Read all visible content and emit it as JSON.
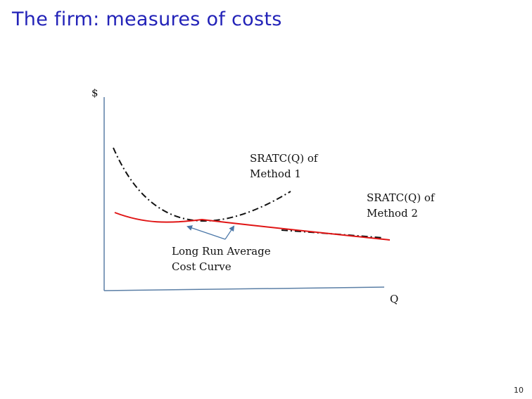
{
  "slide": {
    "title": "The firm: measures of costs",
    "page_number": "10"
  },
  "diagram": {
    "y_axis_label": "$",
    "x_axis_label": "Q",
    "sratc1_line1": "SRATC(Q) of",
    "sratc1_line2": "Method 1",
    "sratc2_line1": "SRATC(Q) of",
    "sratc2_line2": "Method 2",
    "lrac_line1": "Long Run Average",
    "lrac_line2": "Cost Curve",
    "colors": {
      "lrac": "#e01515",
      "sratc": "#111111",
      "axis": "#5b7fa6",
      "pointer": "#4a77a8",
      "title": "#2323b8"
    }
  }
}
